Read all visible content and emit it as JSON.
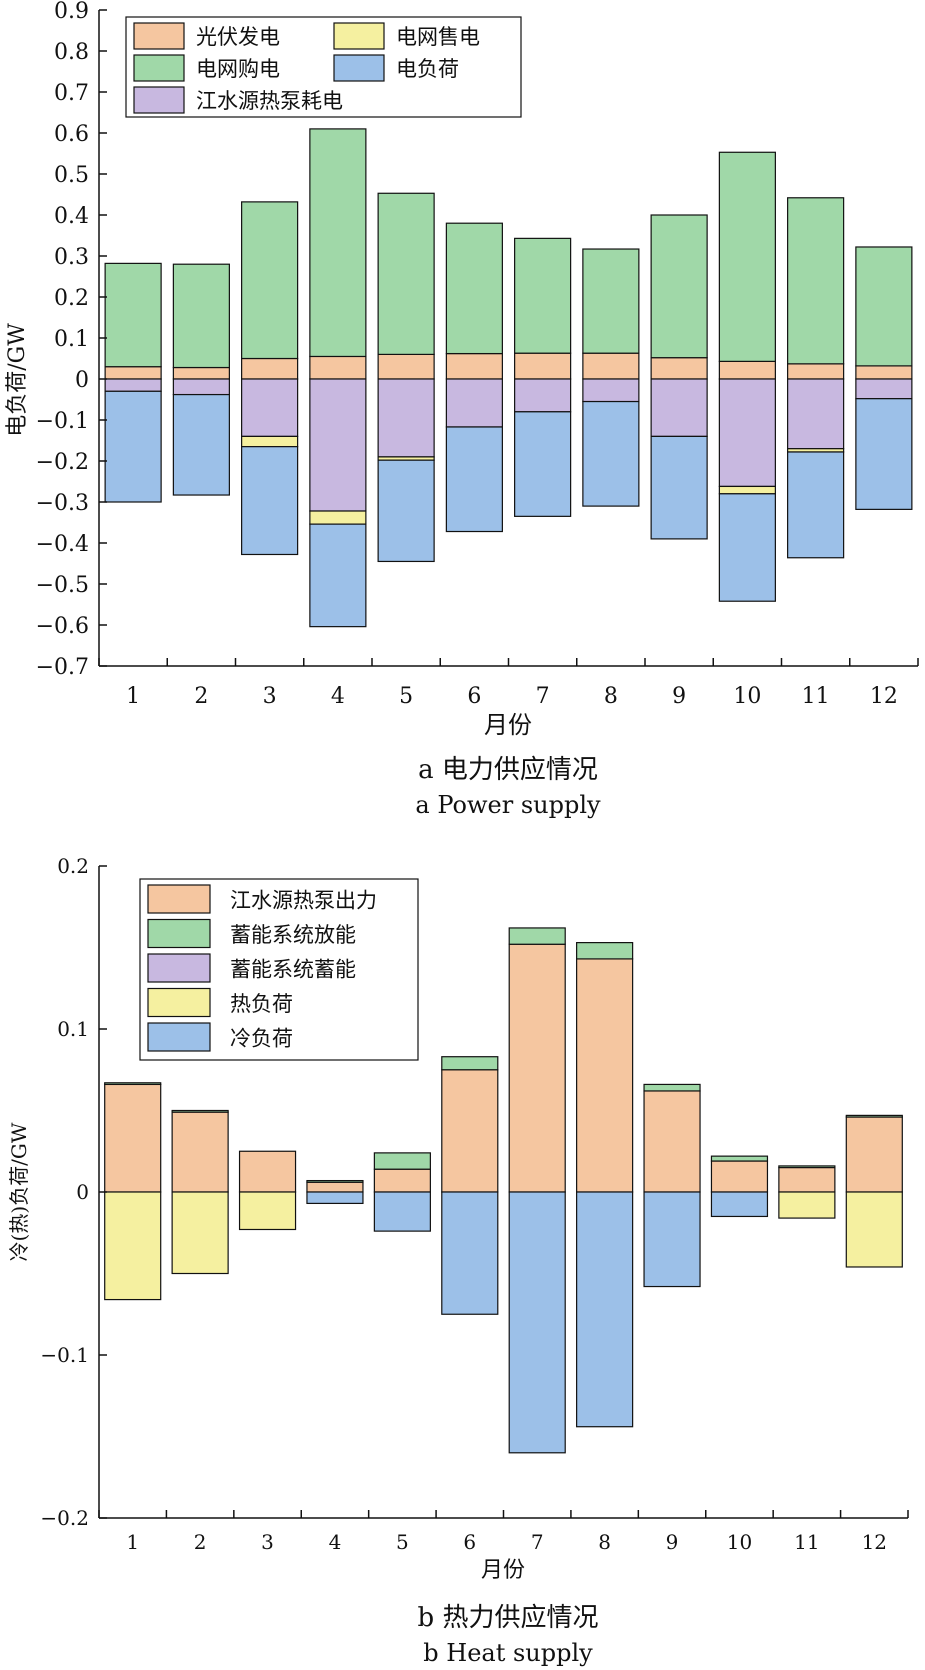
{
  "chart_data": [
    {
      "type": "bar",
      "stacked": true,
      "caption_cn": "a 电力供应情况",
      "caption_en": "a Power supply",
      "xlabel": "月份",
      "ylabel": "电负荷/GW",
      "categories": [
        "1",
        "2",
        "3",
        "4",
        "5",
        "6",
        "7",
        "8",
        "9",
        "10",
        "11",
        "12"
      ],
      "ylim": [
        -0.7,
        0.9
      ],
      "yticks": [
        0.9,
        0.8,
        0.7,
        0.6,
        0.5,
        0.4,
        0.3,
        0.2,
        0.1,
        0,
        -0.1,
        -0.2,
        -0.3,
        -0.4,
        -0.5,
        -0.6,
        -0.7
      ],
      "ytick_labels": [
        "0.9",
        "0.8",
        "0.7",
        "0.6",
        "0.5",
        "0.4",
        "0.3",
        "0.2",
        "0.1",
        "0",
        "−0.1",
        "−0.2",
        "−0.3",
        "−0.4",
        "−0.5",
        "−0.6",
        "−0.7"
      ],
      "legend": {
        "placement": "top-left",
        "columns": 2
      },
      "series": [
        {
          "name": "光伏发电",
          "color": "#F5C6A0",
          "side": "positive",
          "values": [
            0.03,
            0.028,
            0.05,
            0.055,
            0.06,
            0.062,
            0.063,
            0.063,
            0.052,
            0.043,
            0.037,
            0.032
          ]
        },
        {
          "name": "电网售电",
          "color": "#F5F0A0",
          "side": "negative",
          "values": [
            0,
            0,
            -0.025,
            -0.032,
            -0.008,
            0,
            0,
            0,
            0,
            -0.018,
            -0.008,
            0
          ]
        },
        {
          "name": "电网购电",
          "color": "#A0D8A8",
          "side": "positive",
          "values": [
            0.252,
            0.252,
            0.382,
            0.555,
            0.393,
            0.318,
            0.28,
            0.254,
            0.348,
            0.51,
            0.405,
            0.29
          ]
        },
        {
          "name": "电负荷",
          "color": "#9CC0E8",
          "side": "negative",
          "values": [
            -0.27,
            -0.245,
            -0.263,
            -0.25,
            -0.247,
            -0.255,
            -0.255,
            -0.255,
            -0.25,
            -0.262,
            -0.258,
            -0.27
          ]
        },
        {
          "name": "江水源热泵耗电",
          "color": "#C8B8E0",
          "side": "negative",
          "values": [
            -0.03,
            -0.038,
            -0.14,
            -0.322,
            -0.19,
            -0.117,
            -0.08,
            -0.055,
            -0.14,
            -0.262,
            -0.17,
            -0.048
          ]
        }
      ]
    },
    {
      "type": "bar",
      "stacked": true,
      "caption_cn": "b 热力供应情况",
      "caption_en": "b Heat supply",
      "xlabel": "月份",
      "ylabel": "冷(热)负荷/GW",
      "categories": [
        "1",
        "2",
        "3",
        "4",
        "5",
        "6",
        "7",
        "8",
        "9",
        "10",
        "11",
        "12"
      ],
      "ylim": [
        -0.2,
        0.2
      ],
      "yticks": [
        0.2,
        0.1,
        0,
        -0.1,
        -0.2
      ],
      "ytick_labels": [
        "0.2",
        "0.1",
        "0",
        "−0.1",
        "−0.2"
      ],
      "legend": {
        "placement": "top-left",
        "columns": 1
      },
      "series": [
        {
          "name": "江水源热泵出力",
          "color": "#F5C6A0",
          "side": "positive",
          "values": [
            0.066,
            0.049,
            0.025,
            0.006,
            0.014,
            0.075,
            0.152,
            0.143,
            0.062,
            0.019,
            0.015,
            0.046
          ]
        },
        {
          "name": "蓄能系统放能",
          "color": "#A0D8A8",
          "side": "positive",
          "values": [
            0.001,
            0.001,
            0,
            0.001,
            0.01,
            0.008,
            0.01,
            0.01,
            0.004,
            0.003,
            0.001,
            0.001
          ]
        },
        {
          "name": "蓄能系统蓄能",
          "color": "#C8B8E0",
          "side": "negative",
          "values": [
            0,
            0,
            0,
            0,
            0,
            0,
            0,
            0,
            0,
            0,
            0,
            0
          ]
        },
        {
          "name": "热负荷",
          "color": "#F5F0A0",
          "side": "negative",
          "values": [
            -0.066,
            -0.05,
            -0.023,
            0,
            0,
            0,
            0,
            0,
            0,
            0,
            -0.016,
            -0.046
          ]
        },
        {
          "name": "冷负荷",
          "color": "#9CC0E8",
          "side": "negative",
          "values": [
            0,
            0,
            0,
            -0.007,
            -0.024,
            -0.075,
            -0.16,
            -0.144,
            -0.058,
            -0.015,
            0,
            0
          ]
        }
      ]
    }
  ]
}
